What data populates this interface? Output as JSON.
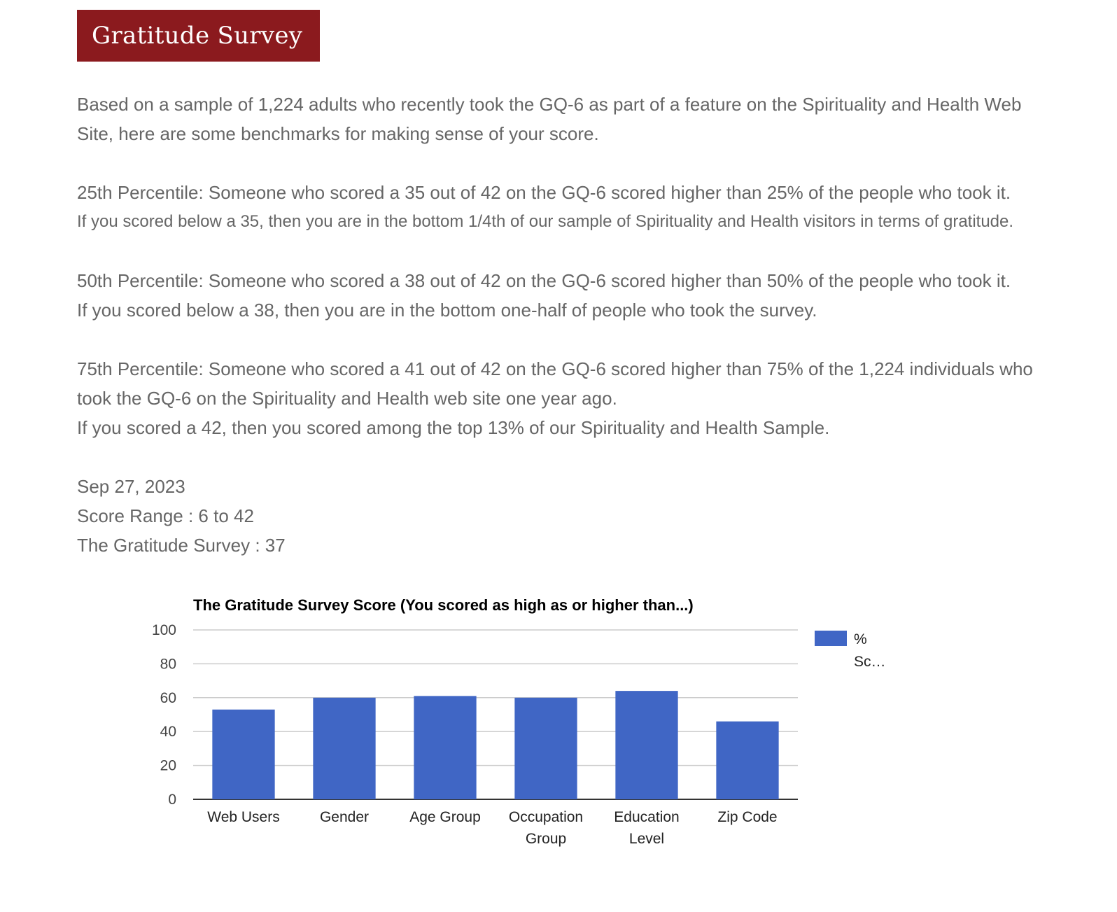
{
  "page": {
    "title": "Gratitude Survey"
  },
  "intro": {
    "line1": "Based on a sample of 1,224 adults who recently took the GQ-6 as part of a feature on the Spirituality and Health Web",
    "line2": "Site, here are some benchmarks for making sense of your score."
  },
  "percentiles": {
    "p25_line1": "25th Percentile: Someone who scored a 35 out of 42 on the GQ-6 scored higher than 25% of the people who took it.",
    "p25_line2": "If you scored below a 35, then you are in the bottom 1/4th of our sample of Spirituality and Health visitors in terms of gratitude.",
    "p50_line1": "50th Percentile: Someone who scored a 38 out of 42 on the GQ-6  scored higher than 50% of the people who took it.",
    "p50_line2": "If you scored below a 38, then you are in the bottom one-half of people who took the survey.",
    "p75_line1": "75th Percentile: Someone who scored a 41 out of 42 on the GQ-6 scored higher than 75% of the 1,224 individuals who",
    "p75_line2": "took the GQ-6 on the Spirituality and Health web site one year ago.",
    "p75_line3": "If you scored a 42, then you scored among the top 13% of our Spirituality and Health Sample."
  },
  "result": {
    "date": "Sep 27, 2023",
    "score_range": "Score Range : 6 to 42",
    "score": "The Gratitude Survey : 37"
  },
  "colors": {
    "banner": "#8b1a1e",
    "bar": "#4066c5",
    "grid": "#cccccc",
    "text": "#666666"
  },
  "chart_data": {
    "type": "bar",
    "title": "The Gratitude Survey Score (You scored as high as or higher than...)",
    "categories": [
      [
        "Web Users"
      ],
      [
        "Gender"
      ],
      [
        "Age Group"
      ],
      [
        "Occupation",
        "Group"
      ],
      [
        "Education",
        "Level"
      ],
      [
        "Zip Code"
      ]
    ],
    "series": [
      {
        "name": "% Sc…",
        "values": [
          53,
          60,
          61,
          60,
          64,
          46
        ]
      }
    ],
    "legend_lines": [
      "%",
      "Sc…"
    ],
    "legend_position": "right",
    "ylim": [
      0,
      100
    ],
    "yticks": [
      "0",
      "20",
      "40",
      "60",
      "80",
      "100"
    ],
    "grid": true
  }
}
